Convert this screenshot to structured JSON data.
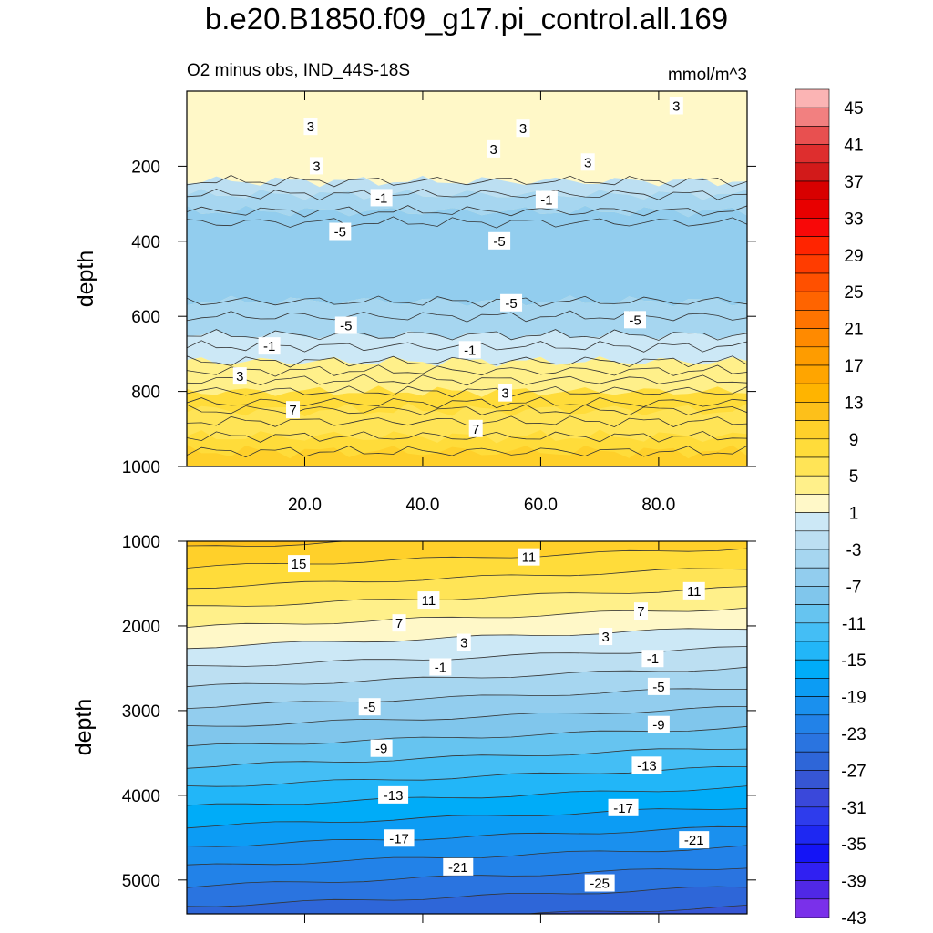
{
  "title": "b.e20.B1850.f09_g17.pi_control.all.169",
  "chart_data": {
    "type": "contour",
    "subtitle_left": "O2 minus obs, IND_44S-18S",
    "units": "mmol/m^3",
    "top_panel": {
      "ylabel": "depth",
      "ylim": [
        0,
        1000
      ],
      "xlim": [
        0,
        95
      ],
      "x_ticks": [
        "20.0",
        "40.0",
        "60.0",
        "80.0"
      ],
      "y_ticks": [
        "200",
        "400",
        "600",
        "800",
        "1000"
      ],
      "layers": [
        {
          "depth_top": 20,
          "depth_bottom": 240,
          "value": 3
        },
        {
          "depth_top": 240,
          "depth_bottom": 275,
          "value": -1
        },
        {
          "depth_top": 275,
          "depth_bottom": 320,
          "value": -3
        },
        {
          "depth_top": 320,
          "depth_bottom": 560,
          "value": -5
        },
        {
          "depth_top": 560,
          "depth_bottom": 650,
          "value": -3
        },
        {
          "depth_top": 650,
          "depth_bottom": 720,
          "value": 1
        },
        {
          "depth_top": 720,
          "depth_bottom": 800,
          "value": 5
        },
        {
          "depth_top": 800,
          "depth_bottom": 1000,
          "value": 9
        }
      ],
      "contour_labels": [
        {
          "text": "3",
          "x": 21,
          "y": 95
        },
        {
          "text": "3",
          "x": 57,
          "y": 100
        },
        {
          "text": "3",
          "x": 83,
          "y": 40
        },
        {
          "text": "3",
          "x": 22,
          "y": 200
        },
        {
          "text": "3",
          "x": 52,
          "y": 155
        },
        {
          "text": "3",
          "x": 68,
          "y": 190
        },
        {
          "text": "-1",
          "x": 33,
          "y": 285
        },
        {
          "text": "-1",
          "x": 61,
          "y": 290
        },
        {
          "text": "-5",
          "x": 26,
          "y": 375
        },
        {
          "text": "-5",
          "x": 53,
          "y": 400
        },
        {
          "text": "-5",
          "x": 27,
          "y": 625
        },
        {
          "text": "-5",
          "x": 55,
          "y": 565
        },
        {
          "text": "-5",
          "x": 76,
          "y": 610
        },
        {
          "text": "-1",
          "x": 14,
          "y": 680
        },
        {
          "text": "-1",
          "x": 48,
          "y": 690
        },
        {
          "text": "3",
          "x": 9,
          "y": 760
        },
        {
          "text": "3",
          "x": 54,
          "y": 805
        },
        {
          "text": "7",
          "x": 18,
          "y": 850
        },
        {
          "text": "7",
          "x": 49,
          "y": 900
        }
      ]
    },
    "bottom_panel": {
      "ylabel": "depth",
      "ylim": [
        1000,
        5400
      ],
      "xlim": [
        0,
        95
      ],
      "y_ticks": [
        "1000",
        "2000",
        "3000",
        "4000",
        "5000"
      ],
      "contour_labels": [
        {
          "text": "15",
          "x": 19,
          "y": 1270
        },
        {
          "text": "11",
          "x": 58,
          "y": 1190
        },
        {
          "text": "11",
          "x": 86,
          "y": 1590
        },
        {
          "text": "11",
          "x": 41,
          "y": 1700
        },
        {
          "text": "7",
          "x": 36,
          "y": 1970
        },
        {
          "text": "7",
          "x": 77,
          "y": 1830
        },
        {
          "text": "3",
          "x": 47,
          "y": 2200
        },
        {
          "text": "3",
          "x": 71,
          "y": 2130
        },
        {
          "text": "-1",
          "x": 43,
          "y": 2490
        },
        {
          "text": "-1",
          "x": 79,
          "y": 2390
        },
        {
          "text": "-5",
          "x": 31,
          "y": 2960
        },
        {
          "text": "-5",
          "x": 80,
          "y": 2720
        },
        {
          "text": "-9",
          "x": 33,
          "y": 3450
        },
        {
          "text": "-9",
          "x": 80,
          "y": 3170
        },
        {
          "text": "-13",
          "x": 35,
          "y": 4000
        },
        {
          "text": "-13",
          "x": 78,
          "y": 3650
        },
        {
          "text": "-17",
          "x": 36,
          "y": 4510
        },
        {
          "text": "-17",
          "x": 74,
          "y": 4150
        },
        {
          "text": "-21",
          "x": 46,
          "y": 4850
        },
        {
          "text": "-21",
          "x": 86,
          "y": 4530
        },
        {
          "text": "-25",
          "x": 70,
          "y": 5040
        }
      ]
    },
    "colorbar": {
      "levels": [
        "45",
        "41",
        "37",
        "33",
        "29",
        "25",
        "21",
        "17",
        "13",
        "9",
        "5",
        "1",
        "-3",
        "-7",
        "-11",
        "-15",
        "-19",
        "-23",
        "-27",
        "-31",
        "-35",
        "-39",
        "-43"
      ],
      "colors": [
        "#fbb4b4",
        "#f28080",
        "#e85050",
        "#de2e2e",
        "#d21a1a",
        "#d80000",
        "#e80000",
        "#f80808",
        "#ff2400",
        "#ff3c00",
        "#ff5000",
        "#ff6400",
        "#ff7400",
        "#ff8a00",
        "#fe9c00",
        "#ffa500",
        "#ffb400",
        "#fdc01a",
        "#ffd02a",
        "#ffdc3a",
        "#ffe456",
        "#fff08a",
        "#fff8c8",
        "#cce8f6",
        "#bcdff2",
        "#a6d6f0",
        "#92cdee",
        "#80c6ec",
        "#66c4f0",
        "#44bef5",
        "#22b6f8",
        "#00acf8",
        "#0c9cf4",
        "#1a90ee",
        "#2282e8",
        "#2a74e0",
        "#2e66d8",
        "#3656d4",
        "#3a48da",
        "#2e3cec",
        "#1e28f2",
        "#1414f6",
        "#3020f2",
        "#5028e6",
        "#7a30ea"
      ]
    }
  }
}
